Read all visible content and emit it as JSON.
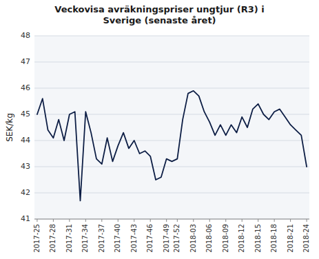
{
  "chart_data": {
    "type": "line",
    "title": "Veckovisa avräkningspriser ungtjur (R3) i\nSverige (senaste året)",
    "y_label": "SEK/kg",
    "color": "#0d1e45",
    "grid": true,
    "ylim": [
      41,
      48
    ],
    "yticks": [
      41,
      42,
      43,
      44,
      45,
      46,
      47,
      48
    ],
    "categories": [
      "2017-25",
      null,
      null,
      "2017-28",
      null,
      null,
      "2017-31",
      null,
      null,
      "2017-34",
      null,
      null,
      "2017-37",
      null,
      null,
      "2017-40",
      null,
      null,
      "2017-43",
      null,
      null,
      "2017-46",
      null,
      null,
      "2017-49",
      null,
      "2017-52",
      null,
      null,
      "2018-03",
      null,
      null,
      "2018-06",
      null,
      null,
      "2018-09",
      null,
      null,
      "2018-12",
      null,
      null,
      "2018-15",
      null,
      null,
      "2018-18",
      null,
      null,
      "2018-21",
      null,
      null,
      "2018-24"
    ],
    "values": [
      45.0,
      45.6,
      44.4,
      44.1,
      44.8,
      44.0,
      45.0,
      45.1,
      41.7,
      45.1,
      44.3,
      43.3,
      43.1,
      44.1,
      43.2,
      43.8,
      44.3,
      43.7,
      44.0,
      43.5,
      43.6,
      43.4,
      42.5,
      42.6,
      43.3,
      43.2,
      43.3,
      44.8,
      45.8,
      45.9,
      45.7,
      45.1,
      44.7,
      44.2,
      44.6,
      44.2,
      44.6,
      44.3,
      44.9,
      44.5,
      45.2,
      45.4,
      45.0,
      44.8,
      45.1,
      45.2,
      44.9,
      44.6,
      44.4,
      44.2,
      43.0
    ]
  }
}
